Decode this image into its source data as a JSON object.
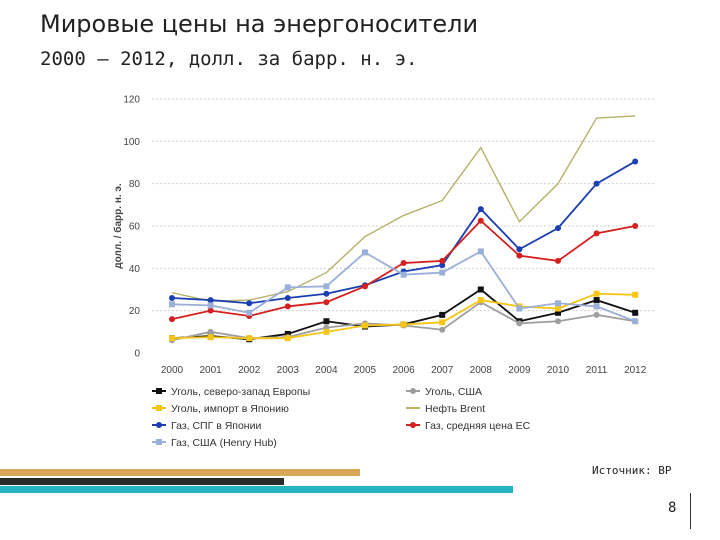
{
  "header": {
    "title": "Мировые цены на энергоносители",
    "subtitle": "2000 – 2012, долл. за барр. н. э."
  },
  "footer": {
    "source": "Источник: BP",
    "page": "8"
  },
  "colors": {
    "bar_gold": "#d9a75a",
    "bar_dark": "#2b2b2b",
    "bar_teal": "#28b3c2"
  },
  "chart_data": {
    "type": "line",
    "title": "",
    "xlabel": "",
    "ylabel": "долл. / барр. н. э.",
    "ylim": [
      0,
      120
    ],
    "yticks": [
      0,
      20,
      40,
      60,
      80,
      100,
      120
    ],
    "grid": true,
    "legend_position": "bottom",
    "categories": [
      "2000",
      "2001",
      "2002",
      "2003",
      "2004",
      "2005",
      "2006",
      "2007",
      "2008",
      "2009",
      "2010",
      "2011",
      "2012"
    ],
    "series": [
      {
        "name": "Уголь, северо-запад Европы",
        "color": "#111111",
        "marker": "square",
        "values": [
          7,
          8,
          6.5,
          9,
          15,
          12.5,
          13.5,
          18,
          30,
          15,
          19,
          25,
          19
        ]
      },
      {
        "name": "Уголь, США",
        "color": "#9e9e9e",
        "marker": "circle",
        "values": [
          6,
          10,
          7,
          7.5,
          12,
          14,
          13,
          11,
          24,
          14,
          15,
          18,
          15
        ]
      },
      {
        "name": "Уголь, импорт в Японию",
        "color": "#f5c518",
        "marker": "square",
        "values": [
          7,
          7.5,
          7,
          7,
          10,
          13,
          13.5,
          14.5,
          25,
          22,
          21,
          28,
          27.5
        ]
      },
      {
        "name": "Нефть Brent",
        "color": "#b5b26a",
        "marker": "none",
        "values": [
          28.5,
          24.5,
          25,
          29,
          38,
          55,
          65,
          72,
          97,
          62,
          80,
          111,
          112
        ]
      },
      {
        "name": "Газ, СПГ в Японии",
        "color": "#1b3fb0",
        "marker": "circle",
        "values": [
          26,
          25,
          23.5,
          26,
          28,
          32,
          38.5,
          41.5,
          68,
          49,
          59,
          80,
          90.5
        ]
      },
      {
        "name": "Газ, средняя цена ЕС",
        "color": "#d42020",
        "marker": "circle",
        "values": [
          16,
          20,
          17.5,
          22,
          24,
          31.5,
          42.5,
          43.5,
          62.5,
          46,
          43.5,
          56.5,
          60
        ]
      },
      {
        "name": "Газ, США (Henry Hub)",
        "color": "#9bb0d8",
        "marker": "square",
        "values": [
          23,
          22.5,
          19,
          31,
          31.5,
          47.5,
          37,
          38,
          48,
          21,
          23.5,
          22,
          15
        ]
      }
    ]
  }
}
